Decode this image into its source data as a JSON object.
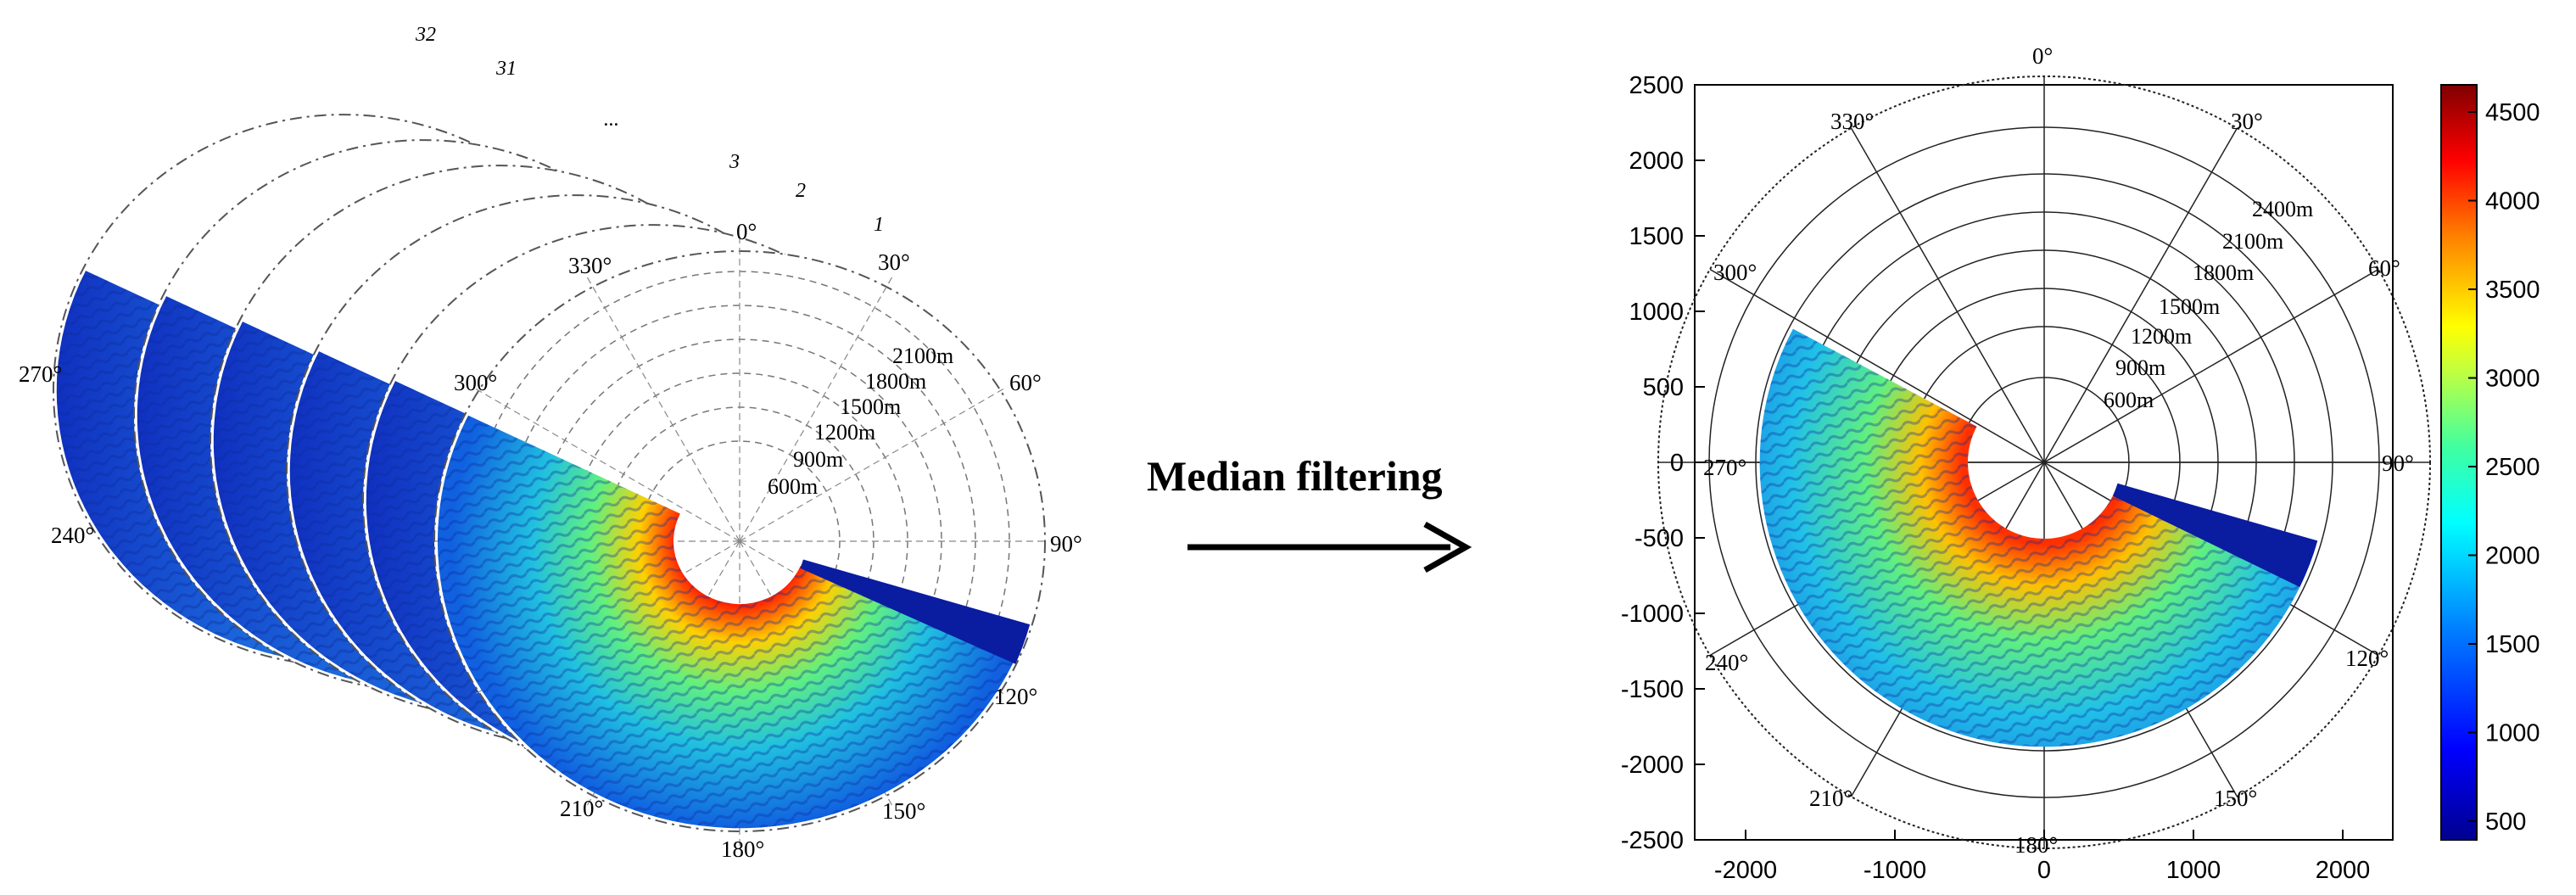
{
  "arrow_label": "Median filtering",
  "colors": {
    "arrow": "#000000",
    "colormap": [
      "#00008f",
      "#0000ff",
      "#0080ff",
      "#00ffff",
      "#80ff80",
      "#ffff00",
      "#ff8000",
      "#ff0000",
      "#800000"
    ]
  },
  "left_stack": {
    "stack_labels": [
      "32",
      "31",
      "...",
      "3",
      "2",
      "1"
    ],
    "angle_labels": [
      "0°",
      "30°",
      "60°",
      "90°",
      "120°",
      "150°",
      "180°",
      "210°",
      "240°",
      "270°",
      "300°",
      "330°"
    ],
    "range_labels": [
      "600m",
      "900m",
      "1200m",
      "1500m",
      "1800m",
      "2100m"
    ]
  },
  "right_plot": {
    "angle_labels": [
      "0°",
      "30°",
      "60°",
      "90°",
      "120°",
      "150°",
      "180°",
      "210°",
      "240°",
      "270°",
      "300°",
      "330°"
    ],
    "range_labels": [
      "600m",
      "900m",
      "1200m",
      "1500m",
      "1800m",
      "2100m",
      "2400m"
    ],
    "y_ticks": [
      "2500",
      "2000",
      "1500",
      "1000",
      "500",
      "0",
      "-500",
      "-1000",
      "-1500",
      "-2000",
      "-2500"
    ],
    "x_ticks": [
      "-2000",
      "-1000",
      "0",
      "1000",
      "2000"
    ],
    "colorbar_ticks": [
      "4500",
      "4000",
      "3500",
      "3000",
      "2500",
      "2000",
      "1500",
      "1000",
      "500"
    ]
  }
}
